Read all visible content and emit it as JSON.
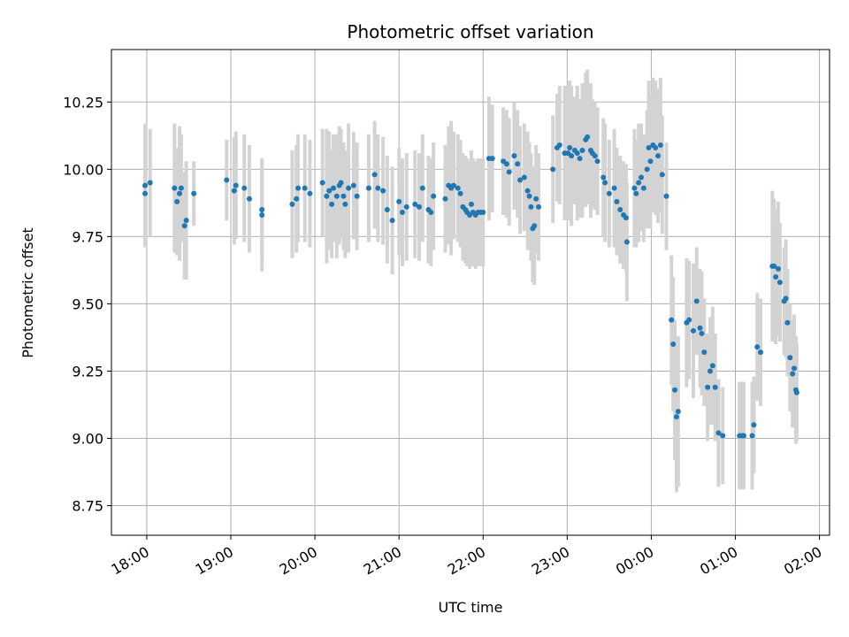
{
  "chart_data": {
    "type": "scatter",
    "title": "Photometric offset variation",
    "xlabel": "UTC time",
    "ylabel": "Photometric offset",
    "x_unit": "hours (UTC, continuing past midnight)",
    "xlim": [
      17.58,
      26.12
    ],
    "ylim": [
      8.64,
      10.445
    ],
    "x_ticks": [
      {
        "x": 18,
        "label": "18:00"
      },
      {
        "x": 19,
        "label": "19:00"
      },
      {
        "x": 20,
        "label": "20:00"
      },
      {
        "x": 21,
        "label": "21:00"
      },
      {
        "x": 22,
        "label": "22:00"
      },
      {
        "x": 23,
        "label": "23:00"
      },
      {
        "x": 24,
        "label": "00:00"
      },
      {
        "x": 25,
        "label": "01:00"
      },
      {
        "x": 26,
        "label": "02:00"
      }
    ],
    "y_ticks": [
      {
        "y": 8.75,
        "label": "8.75"
      },
      {
        "y": 9.0,
        "label": "9.00"
      },
      {
        "y": 9.25,
        "label": "9.25"
      },
      {
        "y": 9.5,
        "label": "9.50"
      },
      {
        "y": 9.75,
        "label": "9.75"
      },
      {
        "y": 10.0,
        "label": "10.00"
      },
      {
        "y": 10.25,
        "label": "10.25"
      }
    ],
    "grid": true,
    "point_color": "#1f77b4",
    "errorbar_color": "#d3d3d3",
    "points": [
      [
        17.98,
        9.94,
        0.23
      ],
      [
        17.98,
        9.91,
        0.2
      ],
      [
        18.04,
        9.95,
        0.2
      ],
      [
        18.33,
        9.93,
        0.24
      ],
      [
        18.36,
        9.88,
        0.2
      ],
      [
        18.39,
        9.91,
        0.25
      ],
      [
        18.41,
        9.93,
        0.2
      ],
      [
        18.45,
        9.79,
        0.2
      ],
      [
        18.47,
        9.81,
        0.22
      ],
      [
        18.56,
        9.91,
        0.12
      ],
      [
        18.95,
        9.96,
        0.15
      ],
      [
        19.04,
        9.92,
        0.2
      ],
      [
        19.06,
        9.94,
        0.2
      ],
      [
        19.16,
        9.93,
        0.2
      ],
      [
        19.22,
        9.89,
        0.2
      ],
      [
        19.37,
        9.83,
        0.21
      ],
      [
        19.37,
        9.85,
        0.18
      ],
      [
        19.73,
        9.87,
        0.2
      ],
      [
        19.78,
        9.89,
        0.2
      ],
      [
        19.8,
        9.93,
        0.2
      ],
      [
        19.88,
        9.93,
        0.2
      ],
      [
        19.94,
        9.91,
        0.2
      ],
      [
        20.09,
        9.95,
        0.2
      ],
      [
        20.14,
        9.9,
        0.25
      ],
      [
        20.17,
        9.92,
        0.22
      ],
      [
        20.2,
        9.87,
        0.2
      ],
      [
        20.22,
        9.93,
        0.2
      ],
      [
        20.26,
        9.9,
        0.23
      ],
      [
        20.29,
        9.94,
        0.22
      ],
      [
        20.31,
        9.95,
        0.2
      ],
      [
        20.34,
        9.9,
        0.2
      ],
      [
        20.36,
        9.87,
        0.2
      ],
      [
        20.4,
        9.93,
        0.24
      ],
      [
        20.46,
        9.94,
        0.2
      ],
      [
        20.5,
        9.9,
        0.2
      ],
      [
        20.64,
        9.93,
        0.2
      ],
      [
        20.71,
        9.98,
        0.2
      ],
      [
        20.75,
        9.93,
        0.2
      ],
      [
        20.81,
        9.92,
        0.2
      ],
      [
        20.86,
        9.85,
        0.2
      ],
      [
        20.92,
        9.81,
        0.2
      ],
      [
        21.0,
        9.88,
        0.2
      ],
      [
        21.04,
        9.84,
        0.2
      ],
      [
        21.09,
        9.86,
        0.2
      ],
      [
        21.19,
        9.87,
        0.2
      ],
      [
        21.24,
        9.86,
        0.2
      ],
      [
        21.28,
        9.93,
        0.2
      ],
      [
        21.35,
        9.85,
        0.2
      ],
      [
        21.38,
        9.84,
        0.2
      ],
      [
        21.41,
        9.9,
        0.2
      ],
      [
        21.55,
        9.89,
        0.2
      ],
      [
        21.59,
        9.94,
        0.22
      ],
      [
        21.62,
        9.93,
        0.25
      ],
      [
        21.65,
        9.94,
        0.2
      ],
      [
        21.7,
        9.93,
        0.2
      ],
      [
        21.73,
        9.91,
        0.2
      ],
      [
        21.76,
        9.86,
        0.2
      ],
      [
        21.79,
        9.85,
        0.2
      ],
      [
        21.81,
        9.84,
        0.2
      ],
      [
        21.84,
        9.83,
        0.2
      ],
      [
        21.86,
        9.87,
        0.2
      ],
      [
        21.88,
        9.84,
        0.2
      ],
      [
        21.91,
        9.83,
        0.2
      ],
      [
        21.94,
        9.84,
        0.2
      ],
      [
        21.97,
        9.84,
        0.2
      ],
      [
        22.0,
        9.84,
        0.2
      ],
      [
        22.07,
        10.04,
        0.23
      ],
      [
        22.11,
        10.04,
        0.2
      ],
      [
        22.24,
        10.03,
        0.2
      ],
      [
        22.28,
        10.02,
        0.2
      ],
      [
        22.31,
        9.99,
        0.2
      ],
      [
        22.37,
        10.05,
        0.2
      ],
      [
        22.41,
        10.02,
        0.2
      ],
      [
        22.44,
        9.96,
        0.2
      ],
      [
        22.49,
        9.97,
        0.2
      ],
      [
        22.53,
        9.92,
        0.22
      ],
      [
        22.55,
        9.9,
        0.2
      ],
      [
        22.57,
        9.86,
        0.2
      ],
      [
        22.59,
        9.78,
        0.2
      ],
      [
        22.61,
        9.79,
        0.22
      ],
      [
        22.63,
        9.89,
        0.2
      ],
      [
        22.66,
        9.86,
        0.2
      ],
      [
        22.83,
        10.0,
        0.2
      ],
      [
        22.88,
        10.08,
        0.2
      ],
      [
        22.91,
        10.09,
        0.22
      ],
      [
        22.97,
        10.06,
        0.25
      ],
      [
        23.01,
        10.06,
        0.25
      ],
      [
        23.03,
        10.08,
        0.25
      ],
      [
        23.05,
        10.05,
        0.26
      ],
      [
        23.09,
        10.07,
        0.2
      ],
      [
        23.12,
        10.06,
        0.25
      ],
      [
        23.15,
        10.04,
        0.22
      ],
      [
        23.18,
        10.07,
        0.25
      ],
      [
        23.22,
        10.11,
        0.25
      ],
      [
        23.24,
        10.12,
        0.25
      ],
      [
        23.28,
        10.07,
        0.25
      ],
      [
        23.3,
        10.06,
        0.2
      ],
      [
        23.33,
        10.05,
        0.2
      ],
      [
        23.36,
        10.03,
        0.2
      ],
      [
        23.43,
        9.97,
        0.22
      ],
      [
        23.45,
        9.95,
        0.22
      ],
      [
        23.5,
        9.91,
        0.2
      ],
      [
        23.56,
        9.93,
        0.22
      ],
      [
        23.59,
        9.88,
        0.2
      ],
      [
        23.63,
        9.85,
        0.2
      ],
      [
        23.67,
        9.83,
        0.2
      ],
      [
        23.7,
        9.82,
        0.2
      ],
      [
        23.71,
        9.73,
        0.22
      ],
      [
        23.8,
        9.93,
        0.22
      ],
      [
        23.82,
        9.91,
        0.2
      ],
      [
        23.85,
        9.95,
        0.22
      ],
      [
        23.88,
        9.97,
        0.2
      ],
      [
        23.91,
        9.93,
        0.2
      ],
      [
        23.95,
        10.0,
        0.22
      ],
      [
        23.97,
        10.08,
        0.25
      ],
      [
        23.99,
        10.03,
        0.25
      ],
      [
        24.02,
        10.09,
        0.25
      ],
      [
        24.05,
        10.08,
        0.25
      ],
      [
        24.08,
        10.05,
        0.25
      ],
      [
        24.11,
        10.09,
        0.25
      ],
      [
        24.13,
        9.98,
        0.22
      ],
      [
        24.18,
        9.9,
        0.2
      ],
      [
        24.24,
        9.44,
        0.24
      ],
      [
        24.26,
        9.35,
        0.25
      ],
      [
        24.28,
        9.18,
        0.26
      ],
      [
        24.3,
        9.08,
        0.28
      ],
      [
        24.32,
        9.1,
        0.28
      ],
      [
        24.42,
        9.43,
        0.24
      ],
      [
        24.45,
        9.44,
        0.22
      ],
      [
        24.5,
        9.4,
        0.25
      ],
      [
        24.54,
        9.51,
        0.2
      ],
      [
        24.58,
        9.41,
        0.22
      ],
      [
        24.6,
        9.39,
        0.23
      ],
      [
        24.63,
        9.32,
        0.2
      ],
      [
        24.67,
        9.19,
        0.2
      ],
      [
        24.7,
        9.25,
        0.2
      ],
      [
        24.73,
        9.27,
        0.22
      ],
      [
        24.76,
        9.19,
        0.2
      ],
      [
        24.8,
        9.02,
        0.2
      ],
      [
        24.85,
        9.01,
        0.18
      ],
      [
        25.05,
        9.01,
        0.2
      ],
      [
        25.08,
        9.01,
        0.2
      ],
      [
        25.1,
        9.01,
        0.2
      ],
      [
        25.2,
        9.01,
        0.2
      ],
      [
        25.22,
        9.05,
        0.18
      ],
      [
        25.26,
        9.34,
        0.2
      ],
      [
        25.3,
        9.32,
        0.2
      ],
      [
        25.44,
        9.64,
        0.28
      ],
      [
        25.46,
        9.64,
        0.25
      ],
      [
        25.48,
        9.6,
        0.25
      ],
      [
        25.51,
        9.63,
        0.25
      ],
      [
        25.53,
        9.58,
        0.22
      ],
      [
        25.58,
        9.51,
        0.2
      ],
      [
        25.6,
        9.52,
        0.22
      ],
      [
        25.62,
        9.43,
        0.2
      ],
      [
        25.65,
        9.3,
        0.2
      ],
      [
        25.68,
        9.24,
        0.2
      ],
      [
        25.7,
        9.26,
        0.2
      ],
      [
        25.72,
        9.18,
        0.2
      ],
      [
        25.73,
        9.17,
        0.18
      ]
    ]
  }
}
